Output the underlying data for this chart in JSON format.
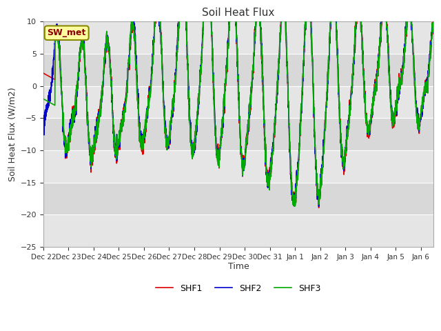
{
  "title": "Soil Heat Flux",
  "ylabel": "Soil Heat Flux (W/m2)",
  "xlabel": "Time",
  "ylim": [
    -25,
    10
  ],
  "yticks": [
    -25,
    -20,
    -15,
    -10,
    -5,
    0,
    5,
    10
  ],
  "plot_bg_color": "#d8d8d8",
  "fig_bg_color": "#ffffff",
  "line_colors": {
    "SHF1": "#dd0000",
    "SHF2": "#0000cc",
    "SHF3": "#00aa00"
  },
  "xtick_labels": [
    "Dec 22",
    "Dec 23",
    "Dec 24",
    "Dec 25",
    "Dec 26",
    "Dec 27",
    "Dec 28",
    "Dec 29",
    "Dec 30",
    "Dec 31",
    "Jan 1",
    "Jan 2",
    "Jan 3",
    "Jan 4",
    "Jan 5",
    "Jan 6"
  ],
  "lw": 1.2,
  "annotation_text": "SW_met",
  "annotation_color": "#8B0000",
  "annotation_bg": "#FFFFA0",
  "annotation_edge": "#888800"
}
